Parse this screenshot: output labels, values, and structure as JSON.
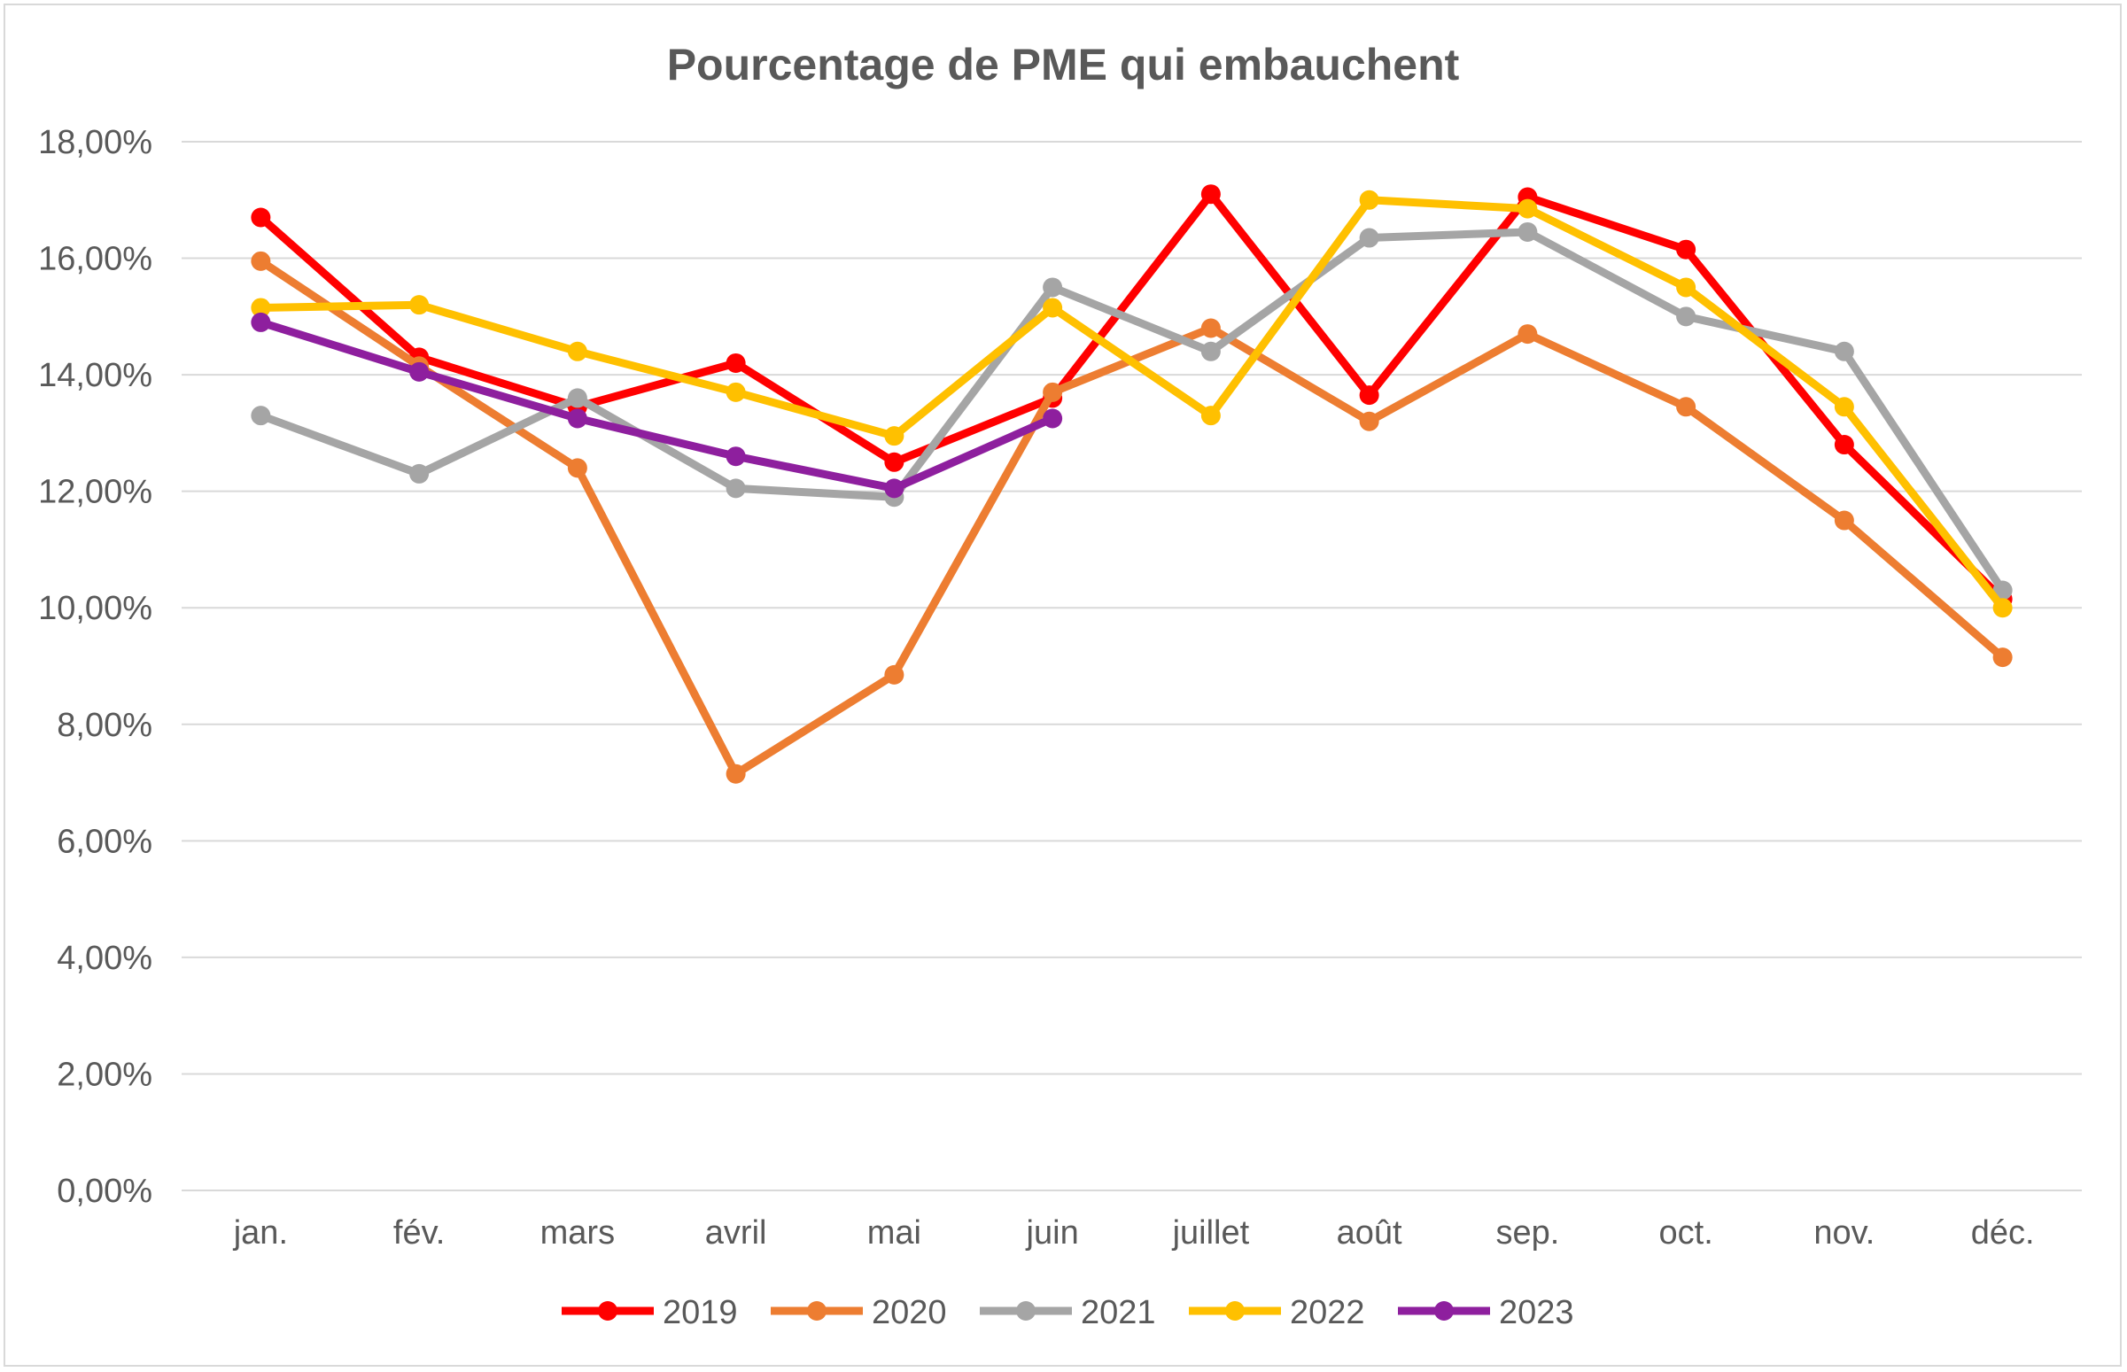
{
  "chart_data": {
    "type": "line",
    "title": "Pourcentage de PME qui embauchent",
    "xlabel": "",
    "ylabel": "",
    "categories": [
      "jan.",
      "fév.",
      "mars",
      "avril",
      "mai",
      "juin",
      "juillet",
      "août",
      "sep.",
      "oct.",
      "nov.",
      "déc."
    ],
    "ylim": [
      0,
      18
    ],
    "yticks": [
      "0,00%",
      "2,00%",
      "4,00%",
      "6,00%",
      "8,00%",
      "10,00%",
      "12,00%",
      "14,00%",
      "16,00%",
      "18,00%"
    ],
    "grid": "horizontal",
    "legend_position": "bottom",
    "series": [
      {
        "name": "2019",
        "color": "#ff0000",
        "values": [
          16.7,
          14.3,
          13.45,
          14.2,
          12.5,
          13.6,
          17.1,
          13.65,
          17.05,
          16.15,
          12.8,
          10.15
        ]
      },
      {
        "name": "2020",
        "color": "#ed7d31",
        "values": [
          15.95,
          14.15,
          12.4,
          7.15,
          8.85,
          13.7,
          14.8,
          13.2,
          14.7,
          13.45,
          11.5,
          9.15
        ]
      },
      {
        "name": "2021",
        "color": "#a5a5a5",
        "values": [
          13.3,
          12.3,
          13.6,
          12.05,
          11.9,
          15.5,
          14.4,
          16.35,
          16.45,
          15.0,
          14.4,
          10.3
        ]
      },
      {
        "name": "2022",
        "color": "#ffc000",
        "values": [
          15.15,
          15.2,
          14.4,
          13.7,
          12.95,
          15.15,
          13.3,
          17.0,
          16.85,
          15.5,
          13.45,
          10.0
        ]
      },
      {
        "name": "2023",
        "color": "#8e1f9e",
        "values": [
          14.9,
          14.05,
          13.25,
          12.6,
          12.05,
          13.25,
          null,
          null,
          null,
          null,
          null,
          null
        ]
      }
    ]
  }
}
